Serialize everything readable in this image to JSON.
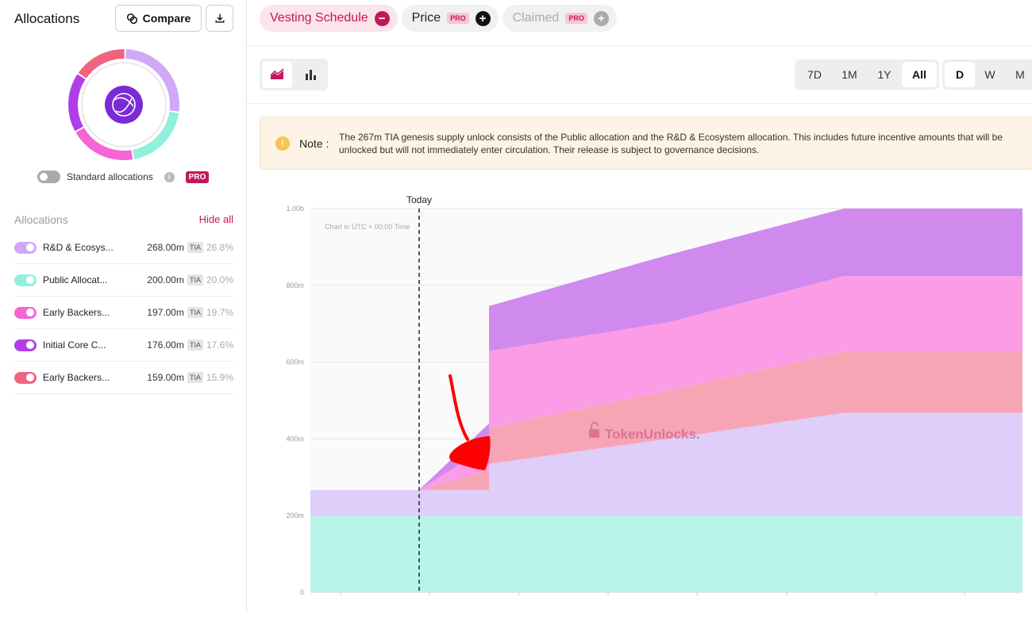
{
  "sidebar": {
    "title": "Allocations",
    "compare_label": "Compare",
    "standard_toggle_label": "Standard allocations",
    "pro": "PRO",
    "list_header": "Allocations",
    "hide_all": "Hide all",
    "items": [
      {
        "name": "R&D & Ecosys...",
        "amount": "268.00m",
        "token": "TIA",
        "pct": "26.8%",
        "color": "#cfa9f7"
      },
      {
        "name": "Public Allocat...",
        "amount": "200.00m",
        "token": "TIA",
        "pct": "20.0%",
        "color": "#8ff0dd"
      },
      {
        "name": "Early Backers...",
        "amount": "197.00m",
        "token": "TIA",
        "pct": "19.7%",
        "color": "#f764d6"
      },
      {
        "name": "Initial Core C...",
        "amount": "176.00m",
        "token": "TIA",
        "pct": "17.6%",
        "color": "#b03ee8"
      },
      {
        "name": "Early Backers...",
        "amount": "159.00m",
        "token": "TIA",
        "pct": "15.9%",
        "color": "#f0647e"
      }
    ]
  },
  "tabs": [
    {
      "label": "Vesting Schedule",
      "active": true
    },
    {
      "label": "Price",
      "badge": "PRO"
    },
    {
      "label": "Claimed",
      "badge": "PRO"
    }
  ],
  "ranges": [
    "7D",
    "1M",
    "1Y",
    "All"
  ],
  "intervals": [
    "D",
    "W",
    "M"
  ],
  "note": {
    "label": "Note :",
    "text": "The 267m TIA genesis supply unlock consists of the Public allocation and the R&D & Ecosystem allocation. This includes future incentive amounts that will be unlocked but will not immediately enter circulation. Their release is subject to governance decisions."
  },
  "chart_data": {
    "type": "area",
    "stacked": true,
    "ylim": [
      0,
      1000000000
    ],
    "yticks": [
      "0",
      "200m",
      "400m",
      "600m",
      "800m",
      "1.00b"
    ],
    "timezone_note": "Chart in UTC + 00:00 Time",
    "today_label": "Today",
    "watermark": "TokenUnlocks.",
    "x": [
      0,
      1,
      2,
      3,
      4,
      5,
      6
    ],
    "series": [
      {
        "color": "#b9f4ea",
        "values": [
          200,
          200,
          200,
          200,
          200,
          200,
          200
        ]
      },
      {
        "color": "#dfcdfa",
        "values": [
          67,
          67,
          67,
          135,
          200,
          268,
          268
        ]
      },
      {
        "color": "#f6a5b5",
        "values": [
          0,
          0,
          52,
          94,
          125,
          159,
          159
        ]
      },
      {
        "color": "#fd9ce6",
        "values": [
          0,
          0,
          63,
          200,
          178,
          197,
          197
        ]
      },
      {
        "color": "#d08aee",
        "values": [
          0,
          0,
          58,
          117,
          176,
          176,
          176
        ]
      }
    ]
  }
}
